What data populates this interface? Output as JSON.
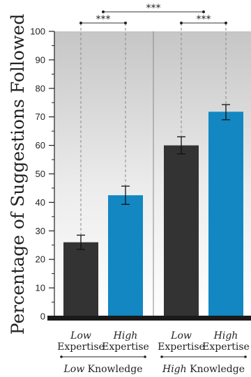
{
  "chart_data": {
    "type": "bar",
    "ylabel": "Percentage of Suggestions Followed",
    "ylim": [
      0,
      100
    ],
    "yticks": [
      0,
      10,
      20,
      30,
      40,
      50,
      60,
      70,
      80,
      90,
      100
    ],
    "grid": false,
    "colors": {
      "low_expertise": "#333333",
      "high_expertise": "#1287c2"
    },
    "groups": [
      {
        "label_italic": "Low",
        "label_rest": " Knowledge",
        "bars": [
          {
            "label_top": "Low",
            "label_bottom": "Expertise",
            "value": 26,
            "err_low": 23.5,
            "err_high": 28.5,
            "color_key": "low_expertise"
          },
          {
            "label_top": "High",
            "label_bottom": "Expertise",
            "value": 42.5,
            "err_low": 39.3,
            "err_high": 45.7,
            "color_key": "high_expertise"
          }
        ]
      },
      {
        "label_italic": "High",
        "label_rest": " Knowledge",
        "bars": [
          {
            "label_top": "Low",
            "label_bottom": "Expertise",
            "value": 60,
            "err_low": 57,
            "err_high": 63,
            "color_key": "low_expertise"
          },
          {
            "label_top": "High",
            "label_bottom": "Expertise",
            "value": 71.8,
            "err_low": 69,
            "err_high": 74.3,
            "color_key": "high_expertise"
          }
        ]
      }
    ],
    "significance": [
      {
        "from": [
          0,
          0
        ],
        "to": [
          0,
          1
        ],
        "label": "***"
      },
      {
        "from": [
          0,
          0
        ],
        "to": [
          1,
          0
        ],
        "label": "***"
      },
      {
        "from": [
          1,
          0
        ],
        "to": [
          1,
          1
        ],
        "label": "***"
      }
    ]
  }
}
